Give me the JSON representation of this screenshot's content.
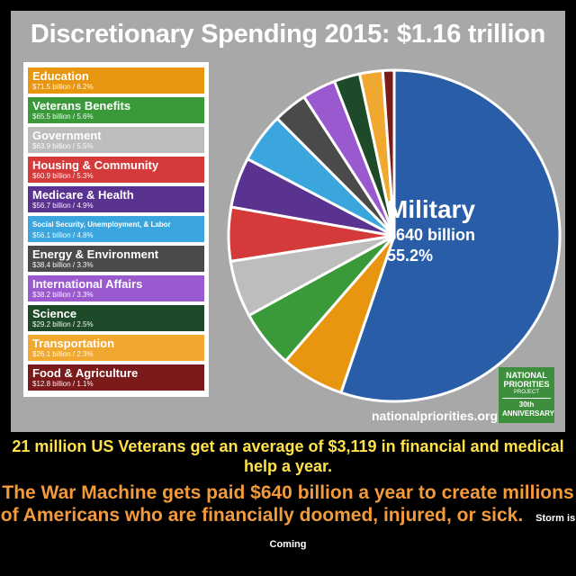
{
  "title": "Discretionary Spending 2015: $1.16 trillion",
  "chart_data": {
    "type": "pie",
    "title": "Discretionary Spending 2015: $1.16 trillion",
    "unit": "billion",
    "slices": [
      {
        "name": "Military",
        "value": 640,
        "percent": 55.2,
        "color": "#2a5da8"
      },
      {
        "name": "Education",
        "value": 71.5,
        "percent": 6.2,
        "color": "#e8960f"
      },
      {
        "name": "Veterans Benefits",
        "value": 65.5,
        "percent": 5.6,
        "color": "#3a9a3a"
      },
      {
        "name": "Government",
        "value": 63.9,
        "percent": 5.5,
        "color": "#bdbdbd"
      },
      {
        "name": "Housing & Community",
        "value": 60.9,
        "percent": 5.3,
        "color": "#d43a3a"
      },
      {
        "name": "Medicare & Health",
        "value": 56.7,
        "percent": 4.9,
        "color": "#5a3290"
      },
      {
        "name": "Social Security, Unemployment, & Labor",
        "value": 56.1,
        "percent": 4.8,
        "color": "#3aa6dd"
      },
      {
        "name": "Energy & Environment",
        "value": 38.4,
        "percent": 3.3,
        "color": "#4a4a4a"
      },
      {
        "name": "International Affairs",
        "value": 38.2,
        "percent": 3.3,
        "color": "#9a59cf"
      },
      {
        "name": "Science",
        "value": 29.2,
        "percent": 2.5,
        "color": "#1f4a2a"
      },
      {
        "name": "Transportation",
        "value": 26.1,
        "percent": 2.3,
        "color": "#f0a830"
      },
      {
        "name": "Food & Agriculture",
        "value": 12.8,
        "percent": 1.1,
        "color": "#7a1a1a"
      }
    ]
  },
  "legend": [
    {
      "name": "Education",
      "detail": "$71.5 billion / 6.2%",
      "color": "#e8960f"
    },
    {
      "name": "Veterans Benefits",
      "detail": "$65.5 billion / 5.6%",
      "color": "#3a9a3a"
    },
    {
      "name": "Government",
      "detail": "$63.9 billion / 5.5%",
      "color": "#bdbdbd"
    },
    {
      "name": "Housing & Community",
      "detail": "$60.9 billion / 5.3%",
      "color": "#d43a3a"
    },
    {
      "name": "Medicare & Health",
      "detail": "$56.7 billion / 4.9%",
      "color": "#5a3290"
    },
    {
      "name": "Social Security, Unemployment, & Labor",
      "detail": "$56.1 billion / 4.8%",
      "color": "#3aa6dd"
    },
    {
      "name": "Energy & Environment",
      "detail": "$38.4 billion / 3.3%",
      "color": "#4a4a4a"
    },
    {
      "name": "International Affairs",
      "detail": "$38.2 billion / 3.3%",
      "color": "#9a59cf"
    },
    {
      "name": "Science",
      "detail": "$29.2 billion / 2.5%",
      "color": "#1f4a2a"
    },
    {
      "name": "Transportation",
      "detail": "$26.1 billion / 2.3%",
      "color": "#f0a830"
    },
    {
      "name": "Food & Agriculture",
      "detail": "$12.8 billion / 1.1%",
      "color": "#7a1a1a"
    }
  ],
  "military_label": {
    "name": "Military",
    "amount": "$640 billion",
    "percent": "55.2%"
  },
  "source": "nationalpriorities.org",
  "logo": {
    "line1": "NATIONAL PRIORITIES",
    "line2": "PROJECT",
    "line3": "30th ANNIVERSARY"
  },
  "caption": {
    "line1": "21 million US Veterans get an average of $3,119 in financial and medical help a year.",
    "line2": "The War Machine gets paid $640 billion a year to create millions of Americans who are financially doomed, injured, or sick.",
    "footer": "Storm is Coming"
  }
}
